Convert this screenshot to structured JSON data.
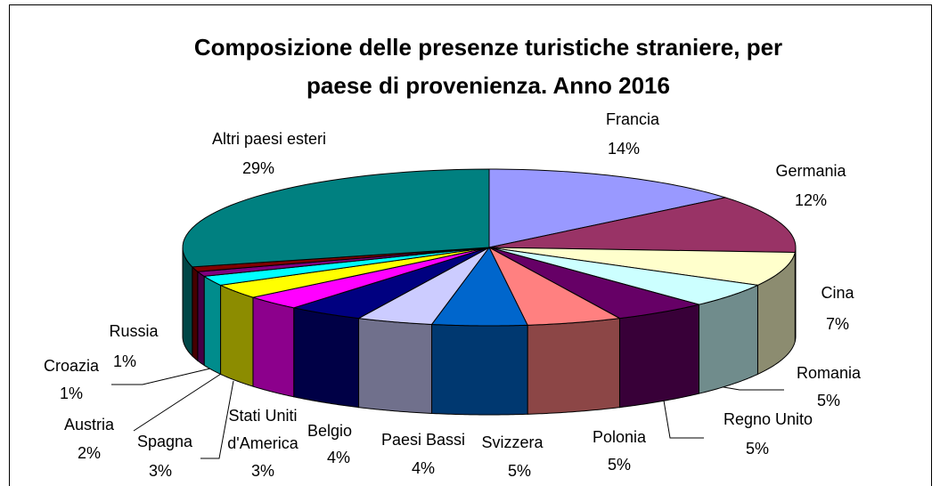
{
  "chart_data": {
    "type": "pie3d",
    "title": "Composizione delle presenze turistiche straniere, per paese di provenienza. Anno 2016",
    "categories": [
      "Francia",
      "Germania",
      "Cina",
      "Romania",
      "Regno Unito",
      "Polonia",
      "Svizzera",
      "Paesi Bassi",
      "Belgio",
      "Stati Uniti d'America",
      "Spagna",
      "Austria",
      "Croazia",
      "Russia",
      "Altri paesi esteri"
    ],
    "values": [
      14,
      12,
      7,
      5,
      5,
      5,
      5,
      4,
      4,
      3,
      3,
      2,
      1,
      1,
      29
    ],
    "value_labels": [
      "14%",
      "12%",
      "7%",
      "5%",
      "5%",
      "5%",
      "5%",
      "4%",
      "4%",
      "3%",
      "3%",
      "2%",
      "1%",
      "1%",
      "29%"
    ],
    "colors": [
      "#9999ff",
      "#993366",
      "#ffffcc",
      "#ccffff",
      "#660066",
      "#ff8080",
      "#0066cc",
      "#ccccff",
      "#000080",
      "#ff00ff",
      "#ffff00",
      "#00ffff",
      "#800080",
      "#800000",
      "#008080"
    ]
  }
}
